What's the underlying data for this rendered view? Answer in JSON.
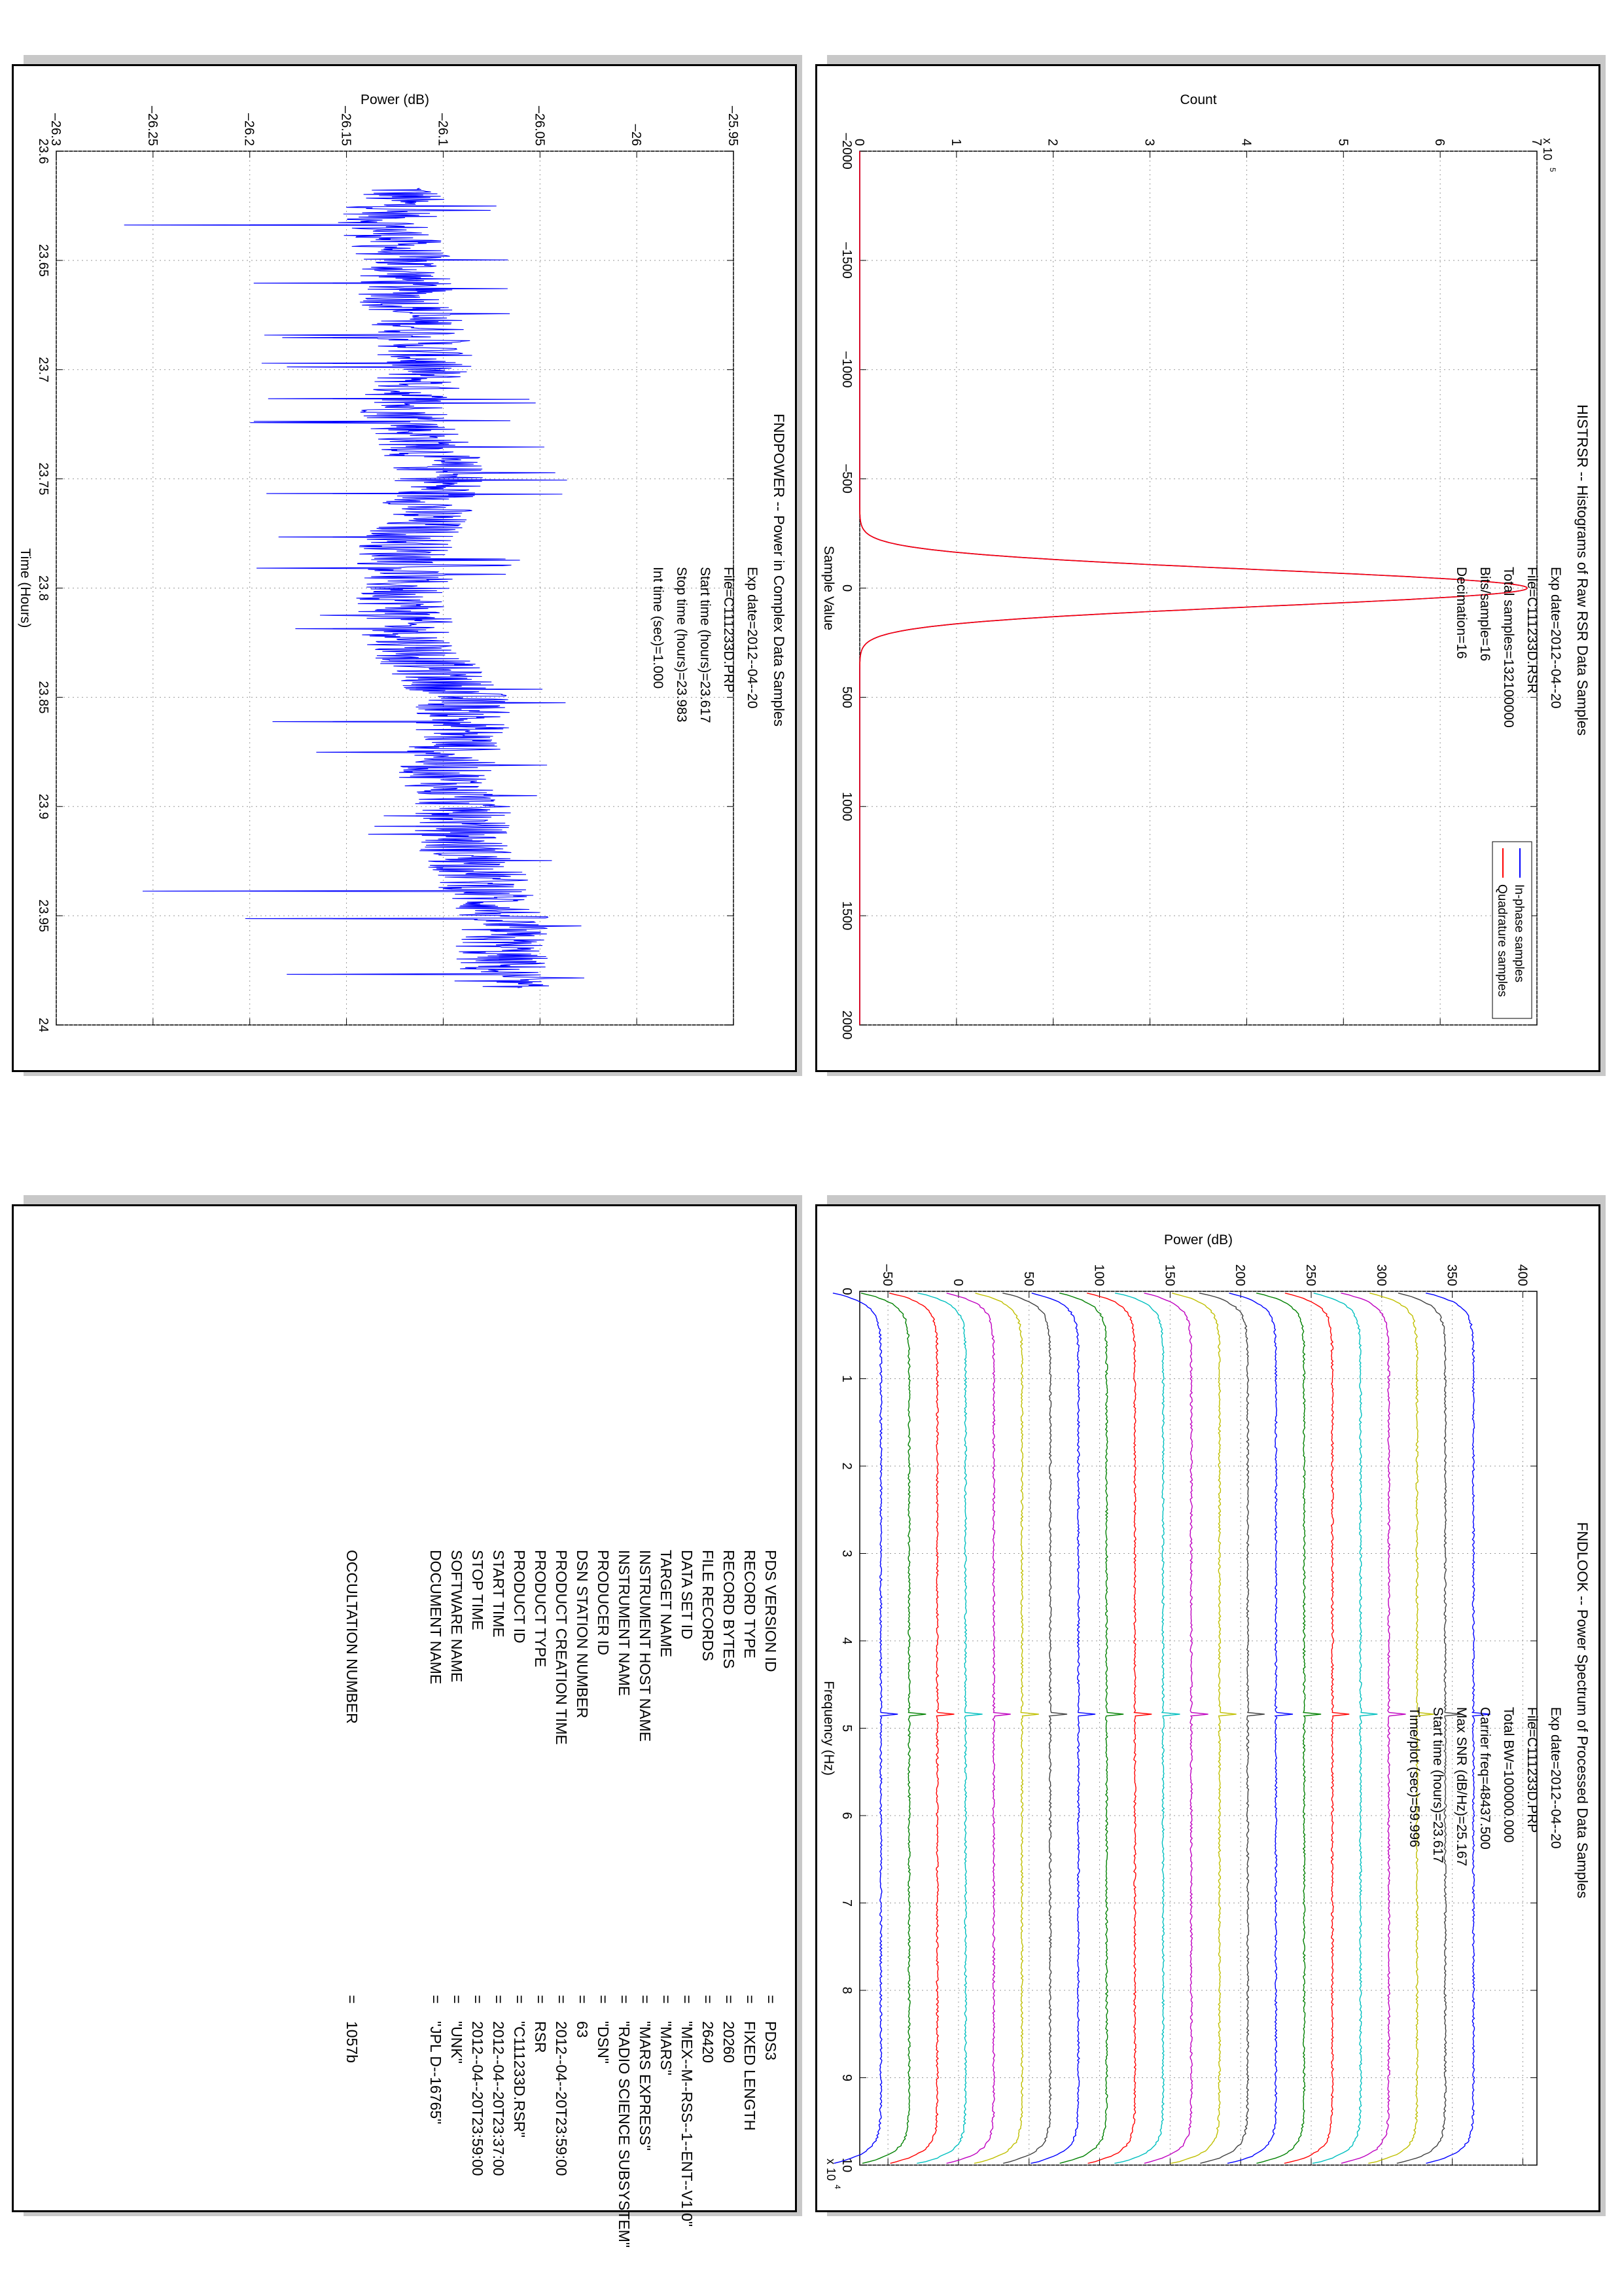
{
  "panels": {
    "histrsr": {
      "title": "HISTRSR -- Histograms of Raw RSR Data Samples",
      "annotations": [
        {
          "label": "Exp date",
          "eq": "=",
          "value": "2012--04--20"
        },
        {
          "label": "File",
          "eq": "=",
          "value": "C111233D.RSR"
        },
        {
          "label": "Total samples",
          "eq": "=",
          "value": "132100000"
        },
        {
          "label": "Bits/sample",
          "eq": "=",
          "value": "16"
        },
        {
          "label": "Decimation",
          "eq": "=",
          "value": "16"
        }
      ]
    },
    "fndpower": {
      "title": "FNDPOWER -- Power in Complex Data Samples",
      "annotations": [
        {
          "label": "Exp date",
          "eq": "=",
          "value": "2012--04--20"
        },
        {
          "label": "File",
          "eq": "=",
          "value": "C111233D.PRP"
        },
        {
          "label": "Start time (hours)",
          "eq": "=",
          "value": "23.617"
        },
        {
          "label": "Stop time (hours)",
          "eq": "=",
          "value": "23.983"
        },
        {
          "label": "Int time (sec)",
          "eq": "=",
          "value": "1.000"
        }
      ]
    },
    "fndlook": {
      "title": "FNDLOOK -- Power Spectrum of Processed Data Samples",
      "annotations": [
        {
          "label": "Exp date",
          "eq": "=",
          "value": "2012--04--20"
        },
        {
          "label": "File",
          "eq": "=",
          "value": "C111233D.PRP"
        },
        {
          "label": "Total BW",
          "eq": "=",
          "value": "100000.000"
        },
        {
          "label": "Carrier freq",
          "eq": "=",
          "value": "48437.500"
        },
        {
          "label": "Max SNR (dB/Hz)",
          "eq": "=",
          "value": "25.167"
        },
        {
          "label": "Start time (hours)",
          "eq": "=",
          "value": "23.617"
        },
        {
          "label": "Time/plot (sec)",
          "eq": "=",
          "value": "59.996"
        }
      ]
    },
    "header": {
      "rows": [
        {
          "key": "PDS VERSION ID",
          "value": "PDS3"
        },
        {
          "key": "RECORD TYPE",
          "value": "FIXED LENGTH"
        },
        {
          "key": "RECORD BYTES",
          "value": "20260"
        },
        {
          "key": "FILE RECORDS",
          "value": "26420"
        },
        {
          "key": "DATA SET ID",
          "value": "\"MEX--M--RSS--1--ENT--V1.0\""
        },
        {
          "key": "TARGET NAME",
          "value": "\"MARS\""
        },
        {
          "key": "INSTRUMENT HOST NAME",
          "value": "\"MARS EXPRESS\""
        },
        {
          "key": "INSTRUMENT NAME",
          "value": "\"RADIO SCIENCE SUBSYSTEM\""
        },
        {
          "key": "PRODUCER ID",
          "value": "\"DSN\""
        },
        {
          "key": "DSN STATION NUMBER",
          "value": "63"
        },
        {
          "key": "PRODUCT CREATION TIME",
          "value": "2012--04--20T23:59:00"
        },
        {
          "key": "PRODUCT TYPE",
          "value": "RSR"
        },
        {
          "key": "PRODUCT ID",
          "value": "\"C111233D.RSR\""
        },
        {
          "key": "START TIME",
          "value": "2012--04--20T23:37:00"
        },
        {
          "key": "STOP TIME",
          "value": "2012--04--20T23:59:00"
        },
        {
          "key": "SOFTWARE NAME",
          "value": "\"UNK\""
        },
        {
          "key": "DOCUMENT NAME",
          "value": "\"JPL D--16765\""
        },
        {
          "key": "OCCULTATION NUMBER",
          "value": "1057"
        }
      ],
      "occultation_suffix": "b"
    }
  },
  "chart_data": [
    {
      "id": "histrsr",
      "type": "line",
      "title": "HISTRSR -- Histograms of Raw RSR Data Samples",
      "xlabel": "Sample Value",
      "ylabel": "Count",
      "y_multiplier": "x 10^5",
      "xlim": [
        -2000,
        2000
      ],
      "ylim": [
        0,
        7
      ],
      "xticks": [
        "-2000",
        "-1500",
        "-1000",
        "-500",
        "0",
        "500",
        "1000",
        "1500",
        "2000"
      ],
      "yticks": [
        "0",
        "1",
        "2",
        "3",
        "4",
        "5",
        "6",
        "7"
      ],
      "grid": true,
      "legend": "top-right",
      "series": [
        {
          "name": "In-phase samples",
          "color": "#0000ff",
          "shape": "gaussian",
          "peak": 6.9,
          "center": 0,
          "half_width_at_base": 250
        },
        {
          "name": "Quadrature samples",
          "color": "#ff0000",
          "shape": "gaussian",
          "peak": 6.9,
          "center": 0,
          "half_width_at_base": 250
        }
      ]
    },
    {
      "id": "fndpower",
      "type": "line",
      "title": "FNDPOWER -- Power in Complex Data Samples",
      "xlabel": "Time (Hours)",
      "ylabel": "Power (dB)",
      "xlim": [
        23.6,
        24
      ],
      "ylim": [
        -26.3,
        -25.95
      ],
      "xticks": [
        "23.6",
        "23.65",
        "23.7",
        "23.75",
        "23.8",
        "23.85",
        "23.9",
        "23.95",
        "24"
      ],
      "yticks": [
        "-26.3",
        "-26.25",
        "-26.2",
        "-26.15",
        "-26.1",
        "-26.05",
        "-26",
        "-25.95"
      ],
      "grid": true,
      "series": [
        {
          "name": "",
          "color": "#0000ff",
          "x": [
            23.617,
            23.633,
            23.65,
            23.667,
            23.683,
            23.7,
            23.717,
            23.733,
            23.75,
            23.767,
            23.783,
            23.8,
            23.817,
            23.833,
            23.85,
            23.867,
            23.883,
            23.9,
            23.917,
            23.933,
            23.95,
            23.967,
            23.983
          ],
          "y": [
            -26.12,
            -26.13,
            -26.12,
            -26.12,
            -26.11,
            -26.11,
            -26.12,
            -26.11,
            -26.1,
            -26.11,
            -26.12,
            -26.12,
            -26.12,
            -26.11,
            -26.09,
            -26.09,
            -26.1,
            -26.09,
            -26.09,
            -26.08,
            -26.07,
            -26.07,
            -26.07
          ],
          "noise_min": [
            -26.22,
            -26.27,
            -26.2,
            -26.23,
            -26.2,
            -26.2,
            -26.2,
            -26.21,
            -26.21,
            -26.19,
            -26.2,
            -26.17,
            -26.18,
            -26.25,
            -26.2,
            -26.18,
            -26.17,
            -26.14,
            -26.27,
            -26.27,
            -26.22,
            -26.2,
            -26.18
          ],
          "noise_max": [
            -26.07,
            -26.06,
            -26.06,
            -26.06,
            -26.05,
            -26.05,
            -26.06,
            -26.04,
            -26.03,
            -26.04,
            -26.06,
            -26.06,
            -26.05,
            -26.04,
            -26.03,
            -26.04,
            -26.05,
            -26.03,
            -26.04,
            -26.03,
            -26.02,
            -26.02,
            -26.03
          ]
        }
      ]
    },
    {
      "id": "fndlook",
      "type": "line",
      "title": "FNDLOOK -- Power Spectrum of Processed Data Samples",
      "xlabel": "Frequency (Hz)",
      "ylabel": "Power (dB)",
      "x_multiplier": "x 10^4",
      "xlim": [
        0,
        10
      ],
      "ylim": [
        -70,
        410
      ],
      "xticks": [
        "0",
        "1",
        "2",
        "3",
        "4",
        "5",
        "6",
        "7",
        "8",
        "9",
        "10"
      ],
      "yticks": [
        "-50",
        "0",
        "50",
        "100",
        "150",
        "200",
        "250",
        "300",
        "350",
        "400"
      ],
      "grid": true,
      "carrier_x": 4.84375,
      "series_offsets": [
        -55,
        -35,
        -15,
        5,
        25,
        45,
        65,
        85,
        105,
        125,
        145,
        165,
        185,
        205,
        225,
        245,
        265,
        285,
        305,
        325,
        345,
        365
      ],
      "series_colors": [
        "#0000ff",
        "#008000",
        "#ff0000",
        "#00bfbf",
        "#bf00bf",
        "#bfbf00",
        "#404040",
        "#0000ff",
        "#008000",
        "#ff0000",
        "#00bfbf",
        "#bf00bf",
        "#bfbf00",
        "#404040",
        "#0000ff",
        "#008000",
        "#ff0000",
        "#00bfbf",
        "#bf00bf",
        "#bfbf00",
        "#404040",
        "#0000ff"
      ],
      "rolloff_depth": 40
    }
  ]
}
